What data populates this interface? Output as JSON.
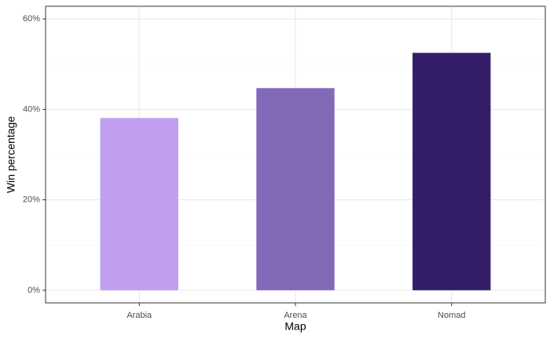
{
  "chart_data": {
    "type": "bar",
    "x_label": "Map",
    "y_label": "Win percentage",
    "categories": [
      "Arabia",
      "Arena",
      "Nomad"
    ],
    "values": [
      38.1,
      44.7,
      52.5
    ],
    "colors": [
      "#c09ff0",
      "#8469b9",
      "#341e6a"
    ],
    "ylim": [
      -2.8,
      62.8
    ],
    "yticks": [
      {
        "value": 0,
        "label": "0%"
      },
      {
        "value": 20,
        "label": "20%"
      },
      {
        "value": 40,
        "label": "40%"
      },
      {
        "value": 60,
        "label": "60%"
      }
    ],
    "y_minor_ticks": [
      10,
      30,
      50
    ],
    "grid": true
  }
}
